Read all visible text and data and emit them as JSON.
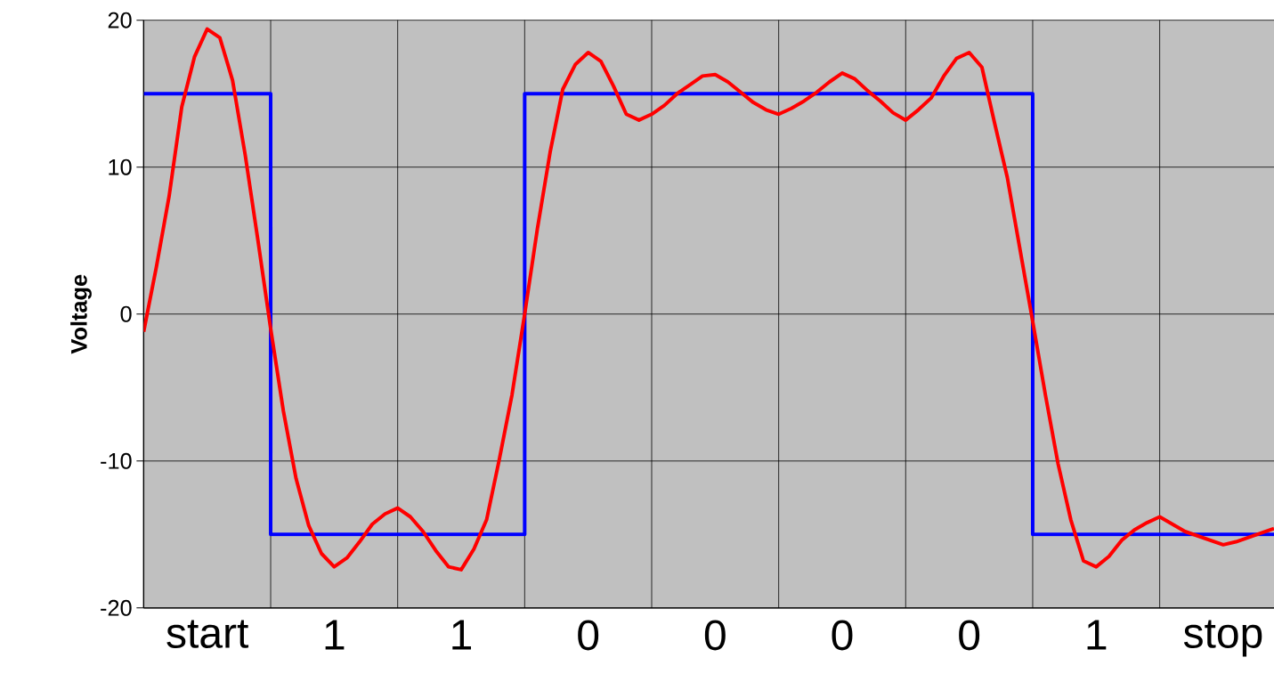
{
  "chart_data": {
    "type": "line",
    "ylabel": "Voltage",
    "annotations": [
      "start",
      "1",
      "1",
      "0",
      "0",
      "0",
      "0",
      "1",
      "stop"
    ],
    "categories": [
      null,
      null,
      null,
      null,
      null,
      null,
      null,
      null,
      null,
      null,
      null,
      null,
      null,
      null,
      null,
      null,
      null,
      null,
      null,
      null,
      null,
      null,
      null,
      null,
      null,
      null,
      null,
      null,
      null,
      null,
      null,
      null,
      null,
      null,
      null,
      null,
      null,
      null,
      null,
      null,
      null,
      null,
      null,
      null,
      null,
      null,
      null,
      null,
      null,
      null,
      null,
      null,
      null,
      null,
      null,
      null,
      null,
      null,
      null,
      null,
      null,
      null,
      null,
      null,
      null,
      null,
      null,
      null,
      null,
      null,
      null,
      null,
      null,
      null,
      null,
      null,
      null,
      null,
      null,
      null,
      null,
      null,
      null,
      null,
      null,
      null,
      null,
      null,
      null,
      null
    ],
    "ylim": [
      -20,
      20
    ],
    "yticks": [
      -20,
      -10,
      0,
      10,
      20
    ],
    "grid": true,
    "marker": "none",
    "line_style": "solid",
    "series": [
      {
        "type": "step",
        "color": "#0000ff",
        "values": [
          15,
          15,
          15,
          15,
          15,
          15,
          15,
          15,
          15,
          15,
          -15,
          -15,
          -15,
          -15,
          -15,
          -15,
          -15,
          -15,
          -15,
          -15,
          -15,
          -15,
          -15,
          -15,
          -15,
          -15,
          -15,
          -15,
          -15,
          -15,
          15,
          15,
          15,
          15,
          15,
          15,
          15,
          15,
          15,
          15,
          15,
          15,
          15,
          15,
          15,
          15,
          15,
          15,
          15,
          15,
          15,
          15,
          15,
          15,
          15,
          15,
          15,
          15,
          15,
          15,
          15,
          15,
          15,
          15,
          15,
          15,
          15,
          15,
          15,
          15,
          -15,
          -15,
          -15,
          -15,
          -15,
          -15,
          -15,
          -15,
          -15,
          -15,
          -15,
          -15,
          -15,
          -15,
          -15,
          -15,
          -15,
          -15,
          -15,
          -15
        ]
      },
      {
        "color": "#ff0000",
        "values": [
          -1.2,
          3.2,
          8.0,
          14.1,
          17.5,
          19.4,
          18.8,
          15.9,
          10.8,
          5.0,
          -1.0,
          -6.6,
          -11.2,
          -14.4,
          -16.3,
          -17.2,
          -16.6,
          -15.5,
          -14.3,
          -13.6,
          -13.2,
          -13.8,
          -14.8,
          -16.1,
          -17.2,
          -17.4,
          -16.0,
          -14.0,
          -9.9,
          -5.5,
          0,
          5.8,
          11.0,
          15.3,
          17.0,
          17.8,
          17.2,
          15.5,
          13.6,
          13.2,
          13.6,
          14.2,
          15.0,
          15.6,
          16.2,
          16.3,
          15.8,
          15.1,
          14.4,
          13.9,
          13.6,
          14.0,
          14.5,
          15.1,
          15.8,
          16.4,
          16.0,
          15.2,
          14.5,
          13.7,
          13.2,
          13.9,
          14.7,
          16.2,
          17.4,
          17.8,
          16.8,
          13.0,
          9.3,
          4.4,
          -0.5,
          -5.5,
          -10.2,
          -14.0,
          -16.8,
          -17.2,
          -16.5,
          -15.4,
          -14.7,
          -14.2,
          -13.8,
          -14.3,
          -14.8,
          -15.1,
          -15.4,
          -15.7,
          -15.5,
          -15.2,
          -14.9,
          -14.6
        ]
      }
    ]
  }
}
